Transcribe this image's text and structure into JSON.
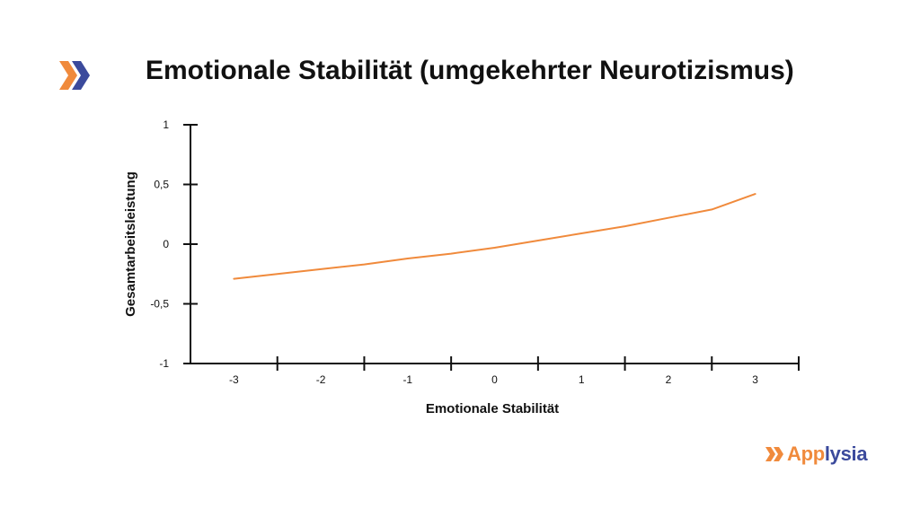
{
  "title": "Emotionale Stabilität (umgekehrter Neurotizismus)",
  "brand": {
    "part1": "App",
    "part2": "lysia",
    "color_orange": "#F08A3C",
    "color_navy": "#3B4A9C"
  },
  "chart_data": {
    "type": "line",
    "title": "Emotionale Stabilität (umgekehrter Neurotizismus)",
    "xlabel": "Emotionale Stabilität",
    "ylabel": "Gesamtarbeitsleistung",
    "xlim": [
      -3.5,
      3.5
    ],
    "ylim": [
      -1,
      1
    ],
    "x_ticks": [
      -3,
      -2,
      -1,
      0,
      1,
      2,
      3
    ],
    "y_ticks": [
      {
        "value": 1,
        "label": "1"
      },
      {
        "value": 0.5,
        "label": "0,5"
      },
      {
        "value": 0,
        "label": "0"
      },
      {
        "value": -0.5,
        "label": "-0,5"
      },
      {
        "value": -1,
        "label": "-1"
      }
    ],
    "line_color": "#F08A3C",
    "grid": false,
    "series": [
      {
        "x": [
          -3,
          -2.5,
          -2,
          -1.5,
          -1,
          -0.5,
          0,
          0.5,
          1,
          1.5,
          2,
          2.5,
          3
        ],
        "y": [
          -0.29,
          -0.25,
          -0.21,
          -0.17,
          -0.12,
          -0.08,
          -0.03,
          0.03,
          0.09,
          0.15,
          0.22,
          0.29,
          0.42
        ]
      }
    ]
  }
}
